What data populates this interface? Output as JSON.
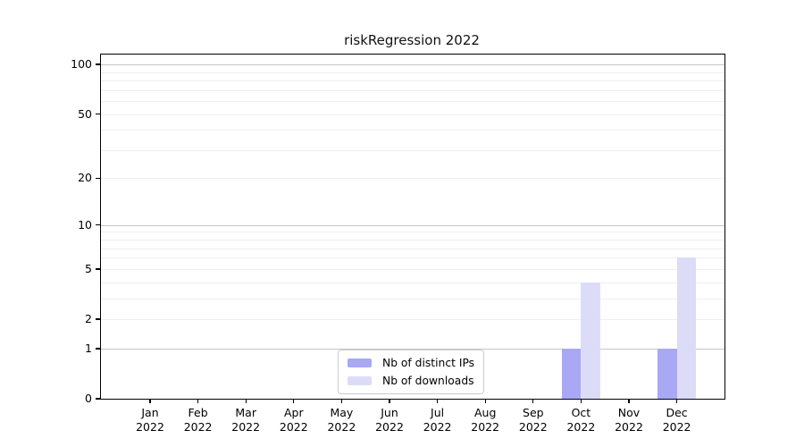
{
  "chart_data": {
    "type": "bar",
    "title": "riskRegression 2022",
    "categories": [
      "Jan",
      "Feb",
      "Mar",
      "Apr",
      "May",
      "Jun",
      "Jul",
      "Aug",
      "Sep",
      "Oct",
      "Nov",
      "Dec"
    ],
    "year": "2022",
    "series": [
      {
        "name": "Nb of distinct IPs",
        "color": "#a8a8f5",
        "values": [
          0,
          0,
          0,
          0,
          0,
          0,
          0,
          0,
          0,
          1,
          0,
          1
        ]
      },
      {
        "name": "Nb of downloads",
        "color": "#dcdcf9",
        "values": [
          0,
          0,
          0,
          0,
          0,
          0,
          0,
          0,
          0,
          4,
          0,
          6
        ]
      }
    ],
    "xlabel": "",
    "ylabel": "",
    "yscale": "log1p",
    "yticks": [
      0,
      1,
      2,
      5,
      10,
      20,
      50,
      100
    ],
    "ylim": [
      0,
      115
    ],
    "gridlines_major": [
      1,
      10,
      100
    ],
    "gridlines_minor": [
      2,
      3,
      4,
      5,
      6,
      7,
      8,
      9,
      20,
      30,
      40,
      50,
      60,
      70,
      80,
      90
    ],
    "grid": true,
    "legend_position": "bottom-center",
    "colors": {
      "spine": "#000000",
      "grid_major": "#c6c6c6",
      "grid_minor": "#efefef",
      "background": "#ffffff"
    }
  }
}
